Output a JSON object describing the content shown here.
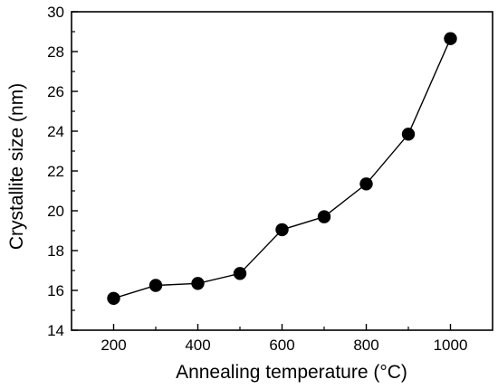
{
  "chart_data": {
    "type": "scatter",
    "title": "",
    "xlabel": "Annealing temperature (°C)",
    "ylabel": "Crystallite size (nm)",
    "xlim": [
      100,
      1100
    ],
    "ylim": [
      14,
      30
    ],
    "xticks": [
      200,
      400,
      600,
      800,
      1000
    ],
    "yticks": [
      14,
      16,
      18,
      20,
      22,
      24,
      26,
      28,
      30
    ],
    "grid": false,
    "legend": "none",
    "line_connected": true,
    "marker": "filled-circle",
    "colors": {
      "marker": "#000000",
      "line": "#000000",
      "axes": "#000000"
    },
    "series": [
      {
        "x": [
          200,
          300,
          400,
          500,
          600,
          700,
          800,
          900,
          1000
        ],
        "y": [
          15.6,
          16.25,
          16.35,
          16.85,
          19.05,
          19.7,
          21.35,
          23.85,
          28.65
        ]
      }
    ]
  }
}
